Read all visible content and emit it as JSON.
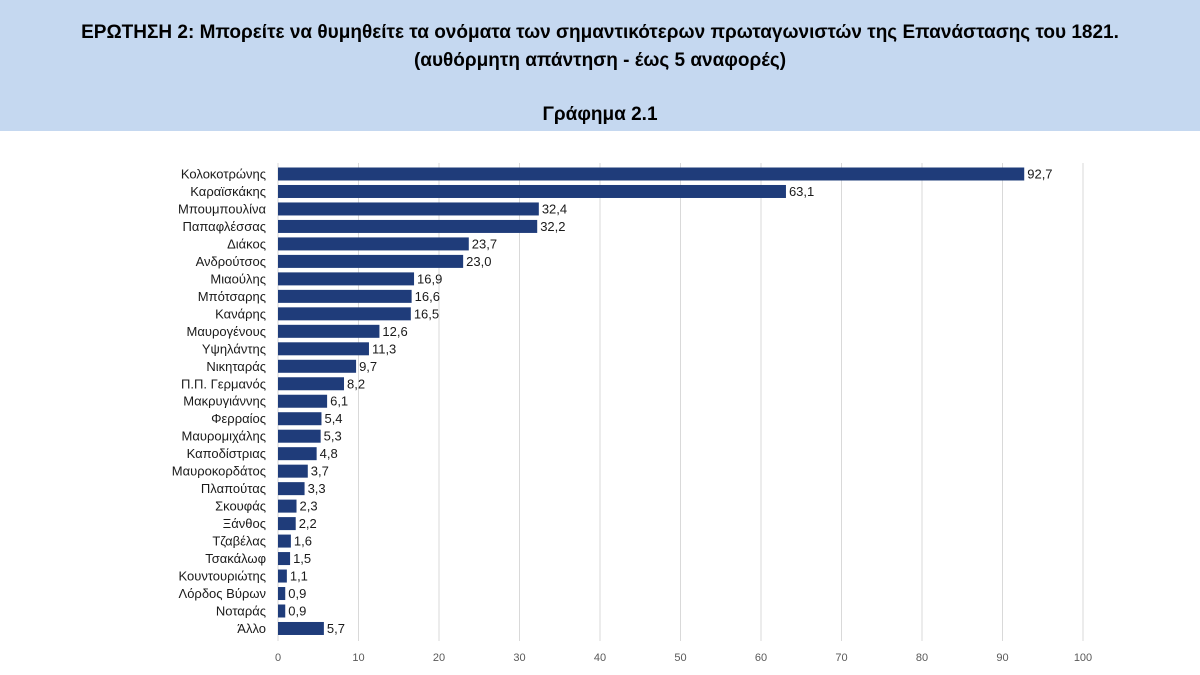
{
  "header": {
    "question": "ΕΡΩΤΗΣΗ 2: Μπορείτε να θυμηθείτε τα ονόματα των σημαντικότερων πρωταγωνιστών της Επανάστασης του 1821.",
    "subtitle": "(αυθόρμητη απάντηση - έως 5 αναφορές)",
    "graph_label": "Γράφημα 2.1"
  },
  "colors": {
    "header_bg": "#c5d8f0",
    "bar": "#1f3c7a",
    "grid": "#d9d9d9"
  },
  "chart_data": {
    "type": "bar",
    "orientation": "horizontal",
    "categories": [
      "Κολοκοτρώνης",
      "Καραϊσκάκης",
      "Μπουμπουλίνα",
      "Παπαφλέσσας",
      "Διάκος",
      "Ανδρούτσος",
      "Μιαούλης",
      "Μπότσαρης",
      "Κανάρης",
      "Μαυρογένους",
      "Υψηλάντης",
      "Νικηταράς",
      "Π.Π. Γερμανός",
      "Μακρυγιάννης",
      "Φερραίος",
      "Μαυρομιχάλης",
      "Καποδίστριας",
      "Μαυροκορδάτος",
      "Πλαπούτας",
      "Σκουφάς",
      "Ξάνθος",
      "Τζαβέλας",
      "Τσακάλωφ",
      "Κουντουριώτης",
      "Λόρδος Βύρων",
      "Νοταράς",
      "Άλλο"
    ],
    "values": [
      92.7,
      63.1,
      32.4,
      32.2,
      23.7,
      23.0,
      16.9,
      16.6,
      16.5,
      12.6,
      11.3,
      9.7,
      8.2,
      6.1,
      5.4,
      5.3,
      4.8,
      3.7,
      3.3,
      2.3,
      2.2,
      1.6,
      1.5,
      1.1,
      0.9,
      0.9,
      5.7
    ],
    "value_labels": [
      "92,7",
      "63,1",
      "32,4",
      "32,2",
      "23,7",
      "23,0",
      "16,9",
      "16,6",
      "16,5",
      "12,6",
      "11,3",
      "9,7",
      "8,2",
      "6,1",
      "5,4",
      "5,3",
      "4,8",
      "3,7",
      "3,3",
      "2,3",
      "2,2",
      "1,6",
      "1,5",
      "1,1",
      "0,9",
      "0,9",
      "5,7"
    ],
    "xlim": [
      0,
      100
    ],
    "xticks": [
      0,
      10,
      20,
      30,
      40,
      50,
      60,
      70,
      80,
      90,
      100
    ],
    "grid": "vertical"
  }
}
